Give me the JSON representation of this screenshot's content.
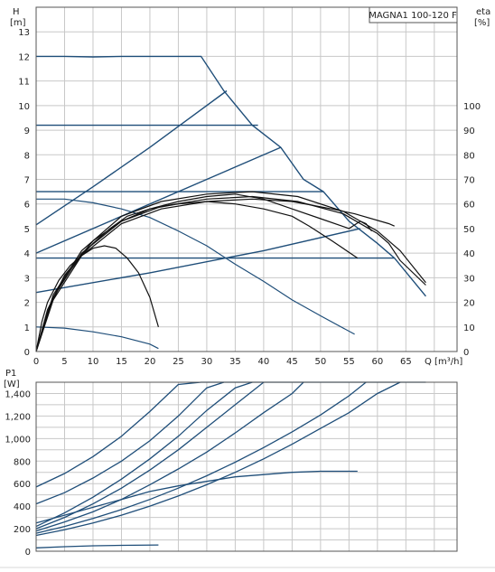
{
  "chart_data": [
    {
      "type": "line",
      "title": "MAGNA1 100-120 F",
      "xlabel": "Q [m³/h]",
      "ylabel_left": "H\n[m]",
      "ylabel_right": "eta\n[%]",
      "x_ticks": [
        "0",
        "5",
        "10",
        "15",
        "20",
        "25",
        "30",
        "35",
        "40",
        "45",
        "50",
        "55",
        "60",
        "65"
      ],
      "y_ticks_left": [
        "0",
        "1",
        "2",
        "3",
        "4",
        "5",
        "6",
        "7",
        "8",
        "9",
        "10",
        "11",
        "12",
        "13"
      ],
      "y_ticks_right": [
        "0",
        "10",
        "20",
        "30",
        "40",
        "50",
        "60",
        "70",
        "80",
        "90",
        "100"
      ],
      "xlim": [
        0,
        74
      ],
      "ylim": [
        0,
        14
      ],
      "ylim_right": [
        0,
        140
      ],
      "grid": true,
      "head_series": [
        {
          "points": [
            [
              0,
              12
            ],
            [
              5,
              12
            ],
            [
              10,
              11.98
            ],
            [
              15,
              12
            ],
            [
              20,
              12
            ],
            [
              25,
              12
            ],
            [
              29,
              12
            ],
            [
              33,
              10.6
            ],
            [
              38,
              9.2
            ],
            [
              43,
              8.3
            ],
            [
              47,
              7
            ],
            [
              50.5,
              6.5
            ],
            [
              55,
              5.3
            ],
            [
              60,
              4.4
            ],
            [
              63,
              3.8
            ],
            [
              68.5,
              2.25
            ]
          ]
        },
        {
          "points": [
            [
              0,
              9.2
            ],
            [
              20,
              9.2
            ],
            [
              39,
              9.2
            ]
          ]
        },
        {
          "points": [
            [
              0,
              6.5
            ],
            [
              25,
              6.5
            ],
            [
              50.5,
              6.5
            ]
          ]
        },
        {
          "points": [
            [
              0,
              3.8
            ],
            [
              25,
              3.8
            ],
            [
              50,
              3.8
            ],
            [
              63,
              3.8
            ]
          ]
        },
        {
          "points": [
            [
              0,
              5.15
            ],
            [
              10,
              6.7
            ],
            [
              20,
              8.3
            ],
            [
              33.5,
              10.6
            ]
          ]
        },
        {
          "points": [
            [
              0,
              4
            ],
            [
              15,
              5.5
            ],
            [
              30,
              7
            ],
            [
              43,
              8.3
            ]
          ]
        },
        {
          "points": [
            [
              0,
              2.4
            ],
            [
              20,
              3.2
            ],
            [
              40,
              4.1
            ],
            [
              57,
              5
            ]
          ]
        }
      ],
      "efficiency_series": [
        {
          "points": [
            [
              0,
              0
            ],
            [
              1,
              12
            ],
            [
              2,
              20
            ],
            [
              4,
              29
            ],
            [
              6,
              35
            ],
            [
              8,
              39
            ],
            [
              10,
              42
            ],
            [
              12,
              43
            ],
            [
              14,
              42
            ],
            [
              16,
              38
            ],
            [
              18,
              32
            ],
            [
              20,
              22
            ],
            [
              21.5,
              10
            ]
          ]
        },
        {
          "points": [
            [
              0,
              0
            ],
            [
              2,
              16
            ],
            [
              4,
              26
            ],
            [
              6,
              33
            ],
            [
              8,
              39
            ],
            [
              10,
              44
            ],
            [
              13,
              50
            ],
            [
              16,
              55
            ],
            [
              20,
              58
            ],
            [
              25,
              60
            ],
            [
              30,
              61
            ],
            [
              35,
              60
            ],
            [
              40,
              58
            ],
            [
              45,
              55
            ],
            [
              48,
              51
            ],
            [
              52,
              45
            ],
            [
              56.5,
              38
            ]
          ]
        },
        {
          "points": [
            [
              0,
              0
            ],
            [
              2,
              17
            ],
            [
              5,
              31
            ],
            [
              10,
              45
            ],
            [
              15,
              53
            ],
            [
              20,
              58
            ],
            [
              25,
              61
            ],
            [
              30,
              63
            ],
            [
              35,
              64
            ],
            [
              40,
              62
            ],
            [
              45,
              58
            ],
            [
              50,
              54
            ],
            [
              55,
              50
            ],
            [
              57,
              53
            ],
            [
              58,
              52
            ],
            [
              59,
              49
            ]
          ]
        },
        {
          "points": [
            [
              0,
              0
            ],
            [
              3,
              22
            ],
            [
              8,
              40
            ],
            [
              15,
              53
            ],
            [
              22,
              59
            ],
            [
              30,
              62
            ],
            [
              38,
              63
            ],
            [
              46,
              61
            ],
            [
              54,
              56
            ],
            [
              60,
              48
            ],
            [
              62,
              44
            ],
            [
              64,
              37
            ],
            [
              68.5,
              27
            ]
          ]
        },
        {
          "points": [
            [
              0,
              0
            ],
            [
              3,
              23
            ],
            [
              8,
              41
            ],
            [
              15,
              55
            ],
            [
              22,
              61
            ],
            [
              30,
              64
            ],
            [
              38,
              65
            ],
            [
              46,
              63
            ],
            [
              54,
              57
            ],
            [
              60,
              49
            ],
            [
              64,
              41
            ],
            [
              68.5,
              28
            ]
          ]
        },
        {
          "points": [
            [
              0,
              0
            ],
            [
              3,
              21
            ],
            [
              8,
              39
            ],
            [
              15,
              52
            ],
            [
              22,
              58
            ],
            [
              30,
              61
            ],
            [
              38,
              62
            ],
            [
              45,
              61
            ],
            [
              52,
              58
            ],
            [
              56,
              56
            ],
            [
              62,
              52
            ],
            [
              63,
              51
            ]
          ]
        }
      ],
      "system_curves": [
        {
          "points": [
            [
              0,
              6.2
            ],
            [
              5,
              6.2
            ],
            [
              10,
              6.05
            ],
            [
              15,
              5.8
            ],
            [
              20,
              5.45
            ],
            [
              25,
              4.9
            ],
            [
              30,
              4.3
            ],
            [
              35,
              3.55
            ],
            [
              40,
              2.85
            ],
            [
              45,
              2.1
            ],
            [
              50,
              1.45
            ],
            [
              56,
              0.7
            ]
          ]
        },
        {
          "points": [
            [
              0,
              1
            ],
            [
              5,
              0.95
            ],
            [
              10,
              0.8
            ],
            [
              15,
              0.6
            ],
            [
              20,
              0.3
            ],
            [
              21.5,
              0.12
            ]
          ]
        }
      ]
    },
    {
      "type": "line",
      "title": "",
      "ylabel": "P1\n[W]",
      "y_ticks": [
        "0",
        "200",
        "400",
        "600",
        "800",
        "1,000",
        "1,200",
        "1,400"
      ],
      "xlim": [
        0,
        74
      ],
      "ylim": [
        0,
        1500
      ],
      "grid": true,
      "power_series": [
        {
          "points": [
            [
              0,
              570
            ],
            [
              5,
              690
            ],
            [
              10,
              840
            ],
            [
              15,
              1020
            ],
            [
              20,
              1240
            ],
            [
              25,
              1480
            ],
            [
              29,
              1500
            ],
            [
              68.5,
              1500
            ]
          ]
        },
        {
          "points": [
            [
              0,
              420
            ],
            [
              5,
              520
            ],
            [
              10,
              650
            ],
            [
              15,
              800
            ],
            [
              20,
              980
            ],
            [
              25,
              1200
            ],
            [
              30,
              1450
            ],
            [
              33,
              1500
            ]
          ]
        },
        {
          "points": [
            [
              0,
              220
            ],
            [
              5,
              340
            ],
            [
              10,
              480
            ],
            [
              15,
              640
            ],
            [
              20,
              820
            ],
            [
              25,
              1020
            ],
            [
              30,
              1250
            ],
            [
              35,
              1450
            ],
            [
              38,
              1500
            ]
          ]
        },
        {
          "points": [
            [
              0,
              200
            ],
            [
              5,
              300
            ],
            [
              10,
              420
            ],
            [
              15,
              560
            ],
            [
              20,
              720
            ],
            [
              25,
              900
            ],
            [
              30,
              1100
            ],
            [
              35,
              1300
            ],
            [
              39,
              1460
            ],
            [
              40,
              1500
            ]
          ]
        },
        {
          "points": [
            [
              0,
              180
            ],
            [
              5,
              260
            ],
            [
              10,
              350
            ],
            [
              15,
              460
            ],
            [
              20,
              590
            ],
            [
              25,
              730
            ],
            [
              30,
              880
            ],
            [
              35,
              1050
            ],
            [
              40,
              1230
            ],
            [
              45,
              1400
            ],
            [
              47,
              1500
            ]
          ]
        },
        {
          "points": [
            [
              0,
              160
            ],
            [
              5,
              220
            ],
            [
              10,
              290
            ],
            [
              15,
              370
            ],
            [
              20,
              460
            ],
            [
              25,
              560
            ],
            [
              30,
              670
            ],
            [
              35,
              790
            ],
            [
              40,
              920
            ],
            [
              45,
              1060
            ],
            [
              50,
              1210
            ],
            [
              55,
              1380
            ],
            [
              58,
              1500
            ]
          ]
        },
        {
          "points": [
            [
              0,
              140
            ],
            [
              5,
              190
            ],
            [
              10,
              250
            ],
            [
              15,
              320
            ],
            [
              20,
              400
            ],
            [
              25,
              490
            ],
            [
              30,
              590
            ],
            [
              35,
              700
            ],
            [
              40,
              820
            ],
            [
              45,
              950
            ],
            [
              50,
              1090
            ],
            [
              55,
              1230
            ],
            [
              60,
              1400
            ],
            [
              64,
              1500
            ]
          ]
        },
        {
          "points": [
            [
              0,
              250
            ],
            [
              5,
              320
            ],
            [
              10,
              390
            ],
            [
              15,
              460
            ],
            [
              20,
              530
            ],
            [
              25,
              580
            ],
            [
              30,
              620
            ],
            [
              35,
              660
            ],
            [
              40,
              680
            ],
            [
              45,
              700
            ],
            [
              50,
              710
            ],
            [
              56.5,
              710
            ]
          ]
        },
        {
          "points": [
            [
              0,
              30
            ],
            [
              5,
              40
            ],
            [
              10,
              48
            ],
            [
              15,
              52
            ],
            [
              21.5,
              55
            ]
          ]
        }
      ]
    }
  ]
}
